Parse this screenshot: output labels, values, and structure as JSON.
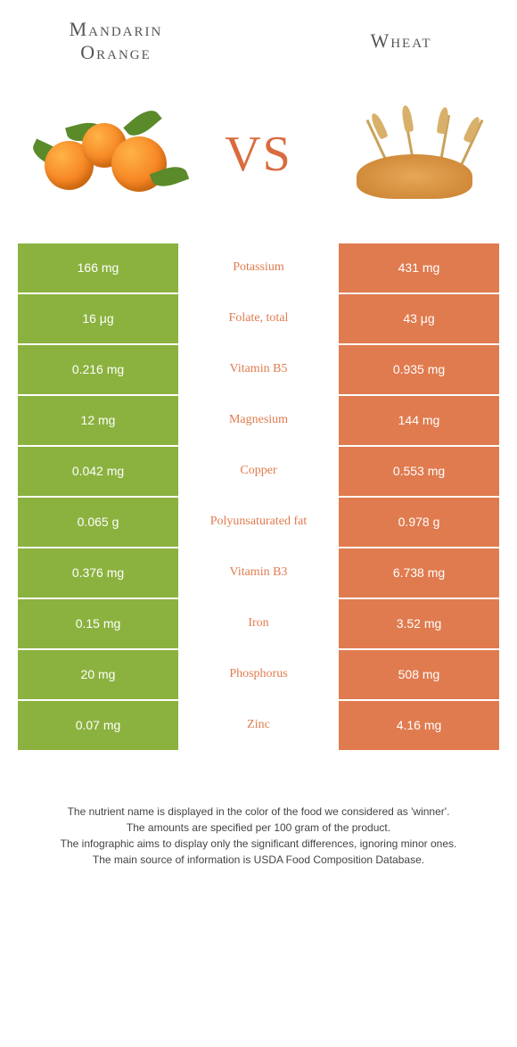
{
  "foods": {
    "left": {
      "name": "Mandarin Orange",
      "title_lines": [
        "Mandarin",
        "Orange"
      ],
      "color": "#8bb23f"
    },
    "right": {
      "name": "Wheat",
      "title_lines": [
        "Wheat"
      ],
      "color": "#e07b4f"
    }
  },
  "vs_label": "VS",
  "winner_color": "#d96b3f",
  "nutrients": [
    {
      "name": "Potassium",
      "left": "166 mg",
      "right": "431 mg",
      "winner": "right"
    },
    {
      "name": "Folate, total",
      "left": "16 μg",
      "right": "43 μg",
      "winner": "right"
    },
    {
      "name": "Vitamin B5",
      "left": "0.216 mg",
      "right": "0.935 mg",
      "winner": "right"
    },
    {
      "name": "Magnesium",
      "left": "12 mg",
      "right": "144 mg",
      "winner": "right"
    },
    {
      "name": "Copper",
      "left": "0.042 mg",
      "right": "0.553 mg",
      "winner": "right"
    },
    {
      "name": "Polyunsaturated fat",
      "left": "0.065 g",
      "right": "0.978 g",
      "winner": "right"
    },
    {
      "name": "Vitamin B3",
      "left": "0.376 mg",
      "right": "6.738 mg",
      "winner": "right"
    },
    {
      "name": "Iron",
      "left": "0.15 mg",
      "right": "3.52 mg",
      "winner": "right"
    },
    {
      "name": "Phosphorus",
      "left": "20 mg",
      "right": "508 mg",
      "winner": "right"
    },
    {
      "name": "Zinc",
      "left": "0.07 mg",
      "right": "4.16 mg",
      "winner": "right"
    }
  ],
  "row_bg": {
    "left": "#8bb23f",
    "right": "#e07b4f"
  },
  "footer": [
    "The nutrient name is displayed in the color of the food we considered as 'winner'.",
    "The amounts are specified per 100 gram of the product.",
    "The infographic aims to display only the significant differences, ignoring minor ones.",
    "The main source of information is USDA Food Composition Database."
  ]
}
